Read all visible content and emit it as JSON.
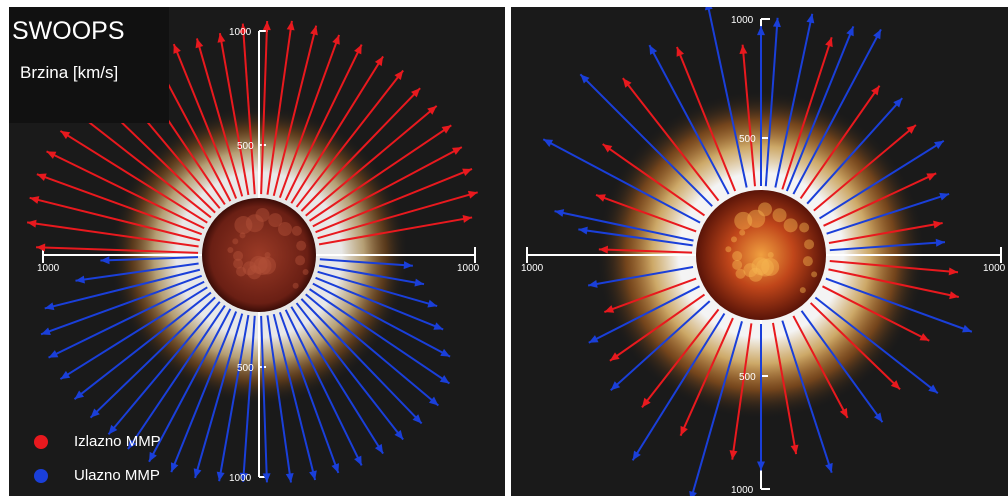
{
  "title": "SWOOPS",
  "subtitle": "Brzina [km/s]",
  "legend": [
    {
      "label": "Izlazno MMP",
      "color": "#e8191e"
    },
    {
      "label": "Ulazno MMP",
      "color": "#1a3fd9"
    }
  ],
  "colors": {
    "outward": "#e8191e",
    "inward": "#1a3fd9",
    "axis": "#ffffff",
    "background": "#1a1a1a"
  },
  "chart_data": [
    {
      "type": "scatter",
      "subtype": "polar-vector",
      "panel": "left",
      "tick_labels": {
        "left": "1000",
        "right": "1000",
        "top_outer": "1000",
        "top_inner": "500",
        "bottom_inner": "500",
        "bottom_outer": "1000"
      },
      "polar_range_km_s": [
        0,
        1000
      ],
      "series": [
        {
          "name": "Izlazno MMP",
          "angles_deg": [
            10,
            16,
            22,
            28,
            34,
            40,
            46,
            52,
            58,
            64,
            70,
            76,
            82,
            88,
            94,
            100,
            106,
            112,
            118,
            124,
            130,
            136,
            142,
            148,
            154,
            160,
            166,
            172,
            178
          ],
          "speeds_km_s": [
            700,
            750,
            760,
            760,
            770,
            770,
            770,
            780,
            780,
            780,
            780,
            790,
            790,
            780,
            770,
            740,
            740,
            750,
            740,
            740,
            760,
            770,
            780,
            780,
            790,
            790,
            790,
            780,
            730
          ]
        },
        {
          "name": "Ulazno MMP",
          "angles_deg": [
            182,
            188,
            194,
            200,
            206,
            212,
            218,
            224,
            230,
            236,
            242,
            248,
            254,
            260,
            266,
            272,
            278,
            284,
            290,
            296,
            302,
            308,
            314,
            320,
            326,
            332,
            338,
            344,
            350,
            356
          ],
          "speeds_km_s": [
            440,
            560,
            720,
            770,
            780,
            780,
            780,
            780,
            780,
            780,
            780,
            780,
            770,
            760,
            750,
            750,
            760,
            770,
            770,
            780,
            780,
            780,
            780,
            780,
            760,
            700,
            620,
            560,
            480,
            420
          ]
        }
      ]
    },
    {
      "type": "scatter",
      "subtype": "polar-vector",
      "panel": "right",
      "tick_labels": {
        "left": "1000",
        "right": "1000",
        "top_outer": "1000",
        "top_inner": "500",
        "bottom_inner": "500",
        "bottom_outer": "1000"
      },
      "polar_range_km_s": [
        0,
        1000
      ],
      "series": [
        {
          "name": "Izlazno MMP",
          "angles_deg": [
            10,
            25,
            40,
            55,
            72,
            95,
            112,
            128,
            145,
            160,
            178,
            200,
            215,
            232,
            246,
            262,
            280,
            298,
            316,
            333,
            348,
            355
          ],
          "speeds_km_s": [
            520,
            560,
            600,
            620,
            720,
            640,
            700,
            700,
            560,
            480,
            420,
            440,
            520,
            560,
            580,
            620,
            600,
            520,
            560,
            540,
            600,
            580
          ]
        },
        {
          "name": "Ulazno MMP",
          "angles_deg": [
            4,
            18,
            32,
            48,
            62,
            68,
            78,
            86,
            90,
            102,
            118,
            135,
            152,
            168,
            172,
            190,
            207,
            222,
            238,
            254,
            270,
            288,
            306,
            322,
            340
          ],
          "speeds_km_s": [
            520,
            580,
            660,
            640,
            840,
            800,
            800,
            760,
            720,
            860,
            760,
            840,
            800,
            640,
            520,
            480,
            560,
            600,
            780,
            840,
            660,
            720,
            620,
            700,
            700
          ]
        }
      ]
    }
  ]
}
